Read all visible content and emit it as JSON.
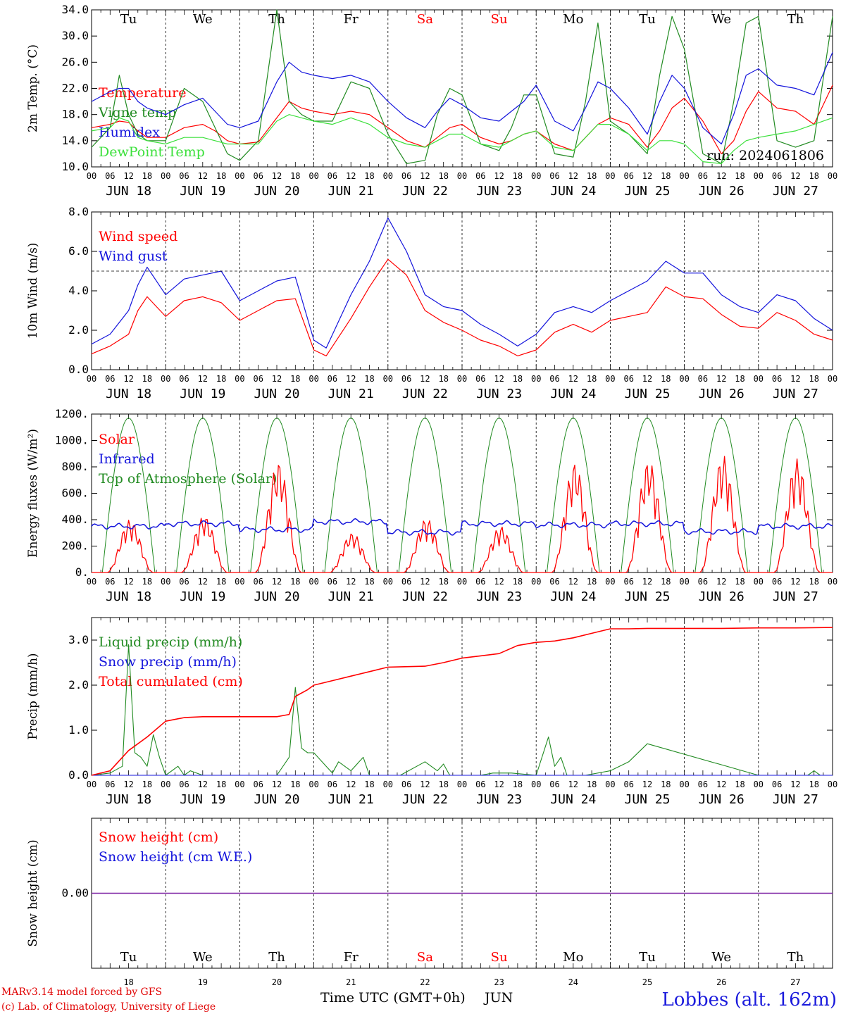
{
  "footer": {
    "model_line": "MARv3.14 model forced by GFS",
    "lab_line": "(c) Lab. of Climatology, University of Liege",
    "x_title": "Time UTC (GMT+0h)",
    "x_month": "JUN",
    "station": "Lobbes (alt. 162m)"
  },
  "days": {
    "weekday_labels": [
      "Tu",
      "We",
      "Th",
      "Fr",
      "Sa",
      "Su",
      "Mo",
      "Tu",
      "We",
      "Th"
    ],
    "weekend_flags": [
      false,
      false,
      false,
      false,
      true,
      true,
      false,
      false,
      false,
      false
    ],
    "date_labels": [
      "JUN 18",
      "JUN 19",
      "JUN 20",
      "JUN 21",
      "JUN 22",
      "JUN 23",
      "JUN 24",
      "JUN 25",
      "JUN 26",
      "JUN 27"
    ],
    "day_numbers": [
      "18",
      "19",
      "20",
      "21",
      "22",
      "23",
      "24",
      "25",
      "26",
      "27"
    ],
    "hour_labels": [
      "00",
      "06",
      "12",
      "18"
    ],
    "final_hour_label": "00"
  },
  "colors": {
    "red": "#ff0000",
    "green": "#228b22",
    "blue": "#1414dc",
    "light_green": "#3ce03c",
    "purple": "#7a1fa2",
    "weekend": "#ff0000"
  },
  "chart_data": [
    {
      "type": "line",
      "ylabel": "2m Temp. (°C)",
      "ylim": [
        10,
        34
      ],
      "yticks": [
        "10.0",
        "14.0",
        "18.0",
        "22.0",
        "26.0",
        "30.0",
        "34.0"
      ],
      "x_hours": [
        0,
        6,
        9,
        12,
        15,
        18,
        24,
        30,
        36,
        40,
        44,
        48,
        54,
        60,
        64,
        68,
        72,
        78,
        84,
        90,
        96,
        102,
        108,
        112,
        116,
        120,
        126,
        132,
        136,
        140,
        144,
        150,
        156,
        160,
        164,
        168,
        174,
        180,
        184,
        188,
        192,
        198,
        204,
        208,
        212,
        216,
        222,
        228,
        234,
        240
      ],
      "annotation": "run: 2024061806",
      "series": [
        {
          "name": "Temperature",
          "color": "#ff0000",
          "values": [
            16.0,
            16.5,
            17.0,
            16.8,
            15.5,
            14.5,
            14.5,
            16.0,
            16.5,
            15.5,
            14.0,
            13.5,
            13.8,
            17.5,
            20.0,
            19.0,
            18.5,
            18.0,
            18.5,
            18.0,
            16.0,
            14.0,
            13.0,
            14.5,
            16.0,
            16.5,
            14.5,
            13.5,
            14.0,
            15.0,
            15.5,
            13.5,
            12.5,
            14.5,
            16.5,
            17.5,
            16.5,
            13.0,
            15.5,
            19.0,
            20.5,
            17.0,
            12.0,
            14.0,
            18.5,
            21.5,
            19.0,
            18.5,
            16.5,
            22.5
          ]
        },
        {
          "name": "Vigne temp",
          "color": "#228b22",
          "values": [
            13.0,
            16.0,
            24.0,
            18.0,
            15.0,
            14.0,
            14.0,
            22.0,
            20.0,
            16.0,
            12.0,
            11.0,
            14.0,
            34.0,
            20.0,
            18.0,
            17.0,
            17.0,
            23.0,
            22.0,
            15.0,
            10.5,
            11.0,
            18.0,
            22.0,
            21.0,
            13.5,
            12.5,
            16.0,
            21.0,
            21.0,
            12.0,
            11.5,
            20.0,
            32.0,
            17.0,
            15.0,
            12.0,
            24.0,
            33.0,
            28.0,
            12.0,
            10.5,
            20.0,
            32.0,
            33.0,
            14.0,
            13.0,
            14.0,
            33.0
          ]
        },
        {
          "name": "Humidex",
          "color": "#1414dc",
          "values": [
            20.0,
            21.5,
            22.0,
            22.0,
            20.0,
            19.0,
            18.0,
            19.5,
            20.5,
            18.5,
            16.5,
            16.0,
            17.0,
            23.0,
            26.0,
            24.5,
            24.0,
            23.5,
            24.0,
            23.0,
            20.0,
            17.5,
            16.0,
            18.5,
            20.5,
            19.5,
            17.5,
            17.0,
            18.5,
            20.0,
            22.5,
            17.0,
            15.5,
            19.0,
            23.0,
            22.0,
            19.0,
            15.0,
            20.0,
            24.0,
            22.0,
            16.0,
            13.5,
            18.0,
            24.0,
            25.0,
            22.5,
            22.0,
            21.0,
            27.5
          ]
        },
        {
          "name": "DewPoint Temp",
          "color": "#3ce03c",
          "values": [
            15.5,
            16.0,
            17.5,
            17.0,
            14.5,
            14.0,
            13.5,
            14.5,
            14.5,
            14.0,
            13.5,
            13.5,
            13.5,
            17.0,
            18.0,
            17.5,
            17.0,
            16.5,
            17.5,
            16.5,
            14.5,
            13.5,
            13.0,
            14.0,
            15.0,
            15.0,
            13.5,
            13.0,
            14.0,
            15.0,
            15.5,
            13.0,
            12.5,
            14.5,
            16.5,
            16.5,
            15.0,
            12.5,
            14.0,
            14.0,
            13.5,
            10.8,
            10.5,
            12.5,
            14.0,
            14.5,
            15.0,
            15.5,
            16.5,
            17.5
          ]
        }
      ]
    },
    {
      "type": "line",
      "ylabel": "10m Wind (m/s)",
      "ylim": [
        0,
        8
      ],
      "yticks": [
        "0.0",
        "2.0",
        "4.0",
        "6.0",
        "8.0"
      ],
      "reference_line": 5.0,
      "x_hours": [
        0,
        6,
        12,
        15,
        18,
        24,
        30,
        36,
        42,
        48,
        54,
        60,
        66,
        72,
        76,
        84,
        90,
        96,
        102,
        108,
        114,
        120,
        126,
        132,
        138,
        144,
        150,
        156,
        162,
        168,
        174,
        180,
        186,
        192,
        198,
        204,
        210,
        216,
        222,
        228,
        234,
        240
      ],
      "series": [
        {
          "name": "Wind speed",
          "color": "#ff0000",
          "values": [
            0.8,
            1.2,
            1.8,
            3.0,
            3.7,
            2.7,
            3.5,
            3.7,
            3.4,
            2.5,
            3.0,
            3.5,
            3.6,
            1.0,
            0.7,
            2.6,
            4.2,
            5.6,
            4.8,
            3.0,
            2.4,
            2.0,
            1.5,
            1.2,
            0.7,
            1.0,
            1.9,
            2.3,
            1.9,
            2.5,
            2.7,
            2.9,
            4.2,
            3.7,
            3.6,
            2.8,
            2.2,
            2.1,
            2.9,
            2.5,
            1.8,
            1.5
          ]
        },
        {
          "name": "Wind gust",
          "color": "#1414dc",
          "values": [
            1.3,
            1.8,
            3.0,
            4.3,
            5.2,
            3.8,
            4.6,
            4.8,
            5.0,
            3.5,
            4.0,
            4.5,
            4.7,
            1.5,
            1.1,
            3.8,
            5.5,
            7.7,
            6.0,
            3.8,
            3.2,
            3.0,
            2.3,
            1.8,
            1.2,
            1.8,
            2.9,
            3.2,
            2.9,
            3.5,
            4.0,
            4.5,
            5.5,
            4.9,
            4.9,
            3.8,
            3.2,
            2.9,
            3.8,
            3.5,
            2.6,
            2.0
          ]
        }
      ]
    },
    {
      "type": "line",
      "ylabel": "Energy fluxes (W/m²)",
      "ylim": [
        0,
        1200
      ],
      "yticks": [
        "0.",
        "200.",
        "400.",
        "600.",
        "800.",
        "1000.",
        "1200."
      ],
      "toa_peak": 1170,
      "solar_peaks": [
        400,
        430,
        840,
        300,
        410,
        350,
        830,
        850,
        890,
        860
      ],
      "infrared_baseline": [
        350,
        370,
        325,
        385,
        305,
        370,
        360,
        370,
        310,
        350
      ],
      "series": [
        {
          "name": "Solar",
          "color": "#ff0000"
        },
        {
          "name": "Infrared",
          "color": "#1414dc"
        },
        {
          "name": "Top of Atmosphere (Solar)",
          "color": "#228b22"
        }
      ]
    },
    {
      "type": "line",
      "ylabel": "Precip (mm/h)",
      "ylim": [
        0,
        3.5
      ],
      "yticks": [
        "0.0",
        "1.0",
        "2.0",
        "3.0"
      ],
      "series": [
        {
          "name": "Liquid precip (mm/h)",
          "color": "#228b22",
          "x_hours": [
            0,
            6,
            10,
            12,
            14,
            16,
            18,
            20,
            22,
            24,
            28,
            30,
            32,
            36,
            40,
            44,
            48,
            60,
            64,
            66,
            68,
            70,
            72,
            76,
            78,
            80,
            84,
            88,
            90,
            96,
            100,
            108,
            112,
            114,
            116,
            120,
            126,
            130,
            136,
            144,
            148,
            150,
            152,
            154,
            160,
            168,
            174,
            180,
            216,
            232,
            234,
            236,
            240
          ],
          "values": [
            0,
            0.05,
            0.2,
            2.9,
            0.5,
            0.4,
            0.2,
            0.9,
            0.4,
            0,
            0.2,
            0,
            0.1,
            0,
            0,
            0,
            0,
            0,
            0.4,
            1.95,
            0.6,
            0.5,
            0.5,
            0.2,
            0.05,
            0.3,
            0.1,
            0.4,
            0,
            0,
            0,
            0.3,
            0.1,
            0.25,
            0,
            0,
            0,
            0.05,
            0.05,
            0,
            0.85,
            0.2,
            0.4,
            0,
            0,
            0.1,
            0.3,
            0.7,
            0,
            0,
            0.1,
            0,
            0
          ]
        },
        {
          "name": "Snow precip (mm/h)",
          "color": "#1414dc",
          "x_hours": [
            0,
            240
          ],
          "values": [
            0,
            0
          ]
        },
        {
          "name": "Total cumulated (cm)",
          "color": "#ff0000",
          "x_hours": [
            0,
            6,
            12,
            18,
            24,
            30,
            36,
            48,
            60,
            64,
            66,
            70,
            72,
            78,
            84,
            90,
            96,
            108,
            114,
            120,
            126,
            132,
            138,
            144,
            150,
            156,
            162,
            168,
            174,
            180,
            192,
            204,
            216,
            228,
            240
          ],
          "values": [
            0,
            0.1,
            0.55,
            0.85,
            1.2,
            1.28,
            1.3,
            1.3,
            1.3,
            1.35,
            1.75,
            1.9,
            2.0,
            2.1,
            2.2,
            2.3,
            2.4,
            2.42,
            2.5,
            2.6,
            2.65,
            2.7,
            2.88,
            2.95,
            2.98,
            3.05,
            3.15,
            3.25,
            3.25,
            3.26,
            3.26,
            3.26,
            3.27,
            3.27,
            3.28
          ]
        }
      ]
    },
    {
      "type": "line",
      "ylabel": "Snow height (cm)",
      "ylim": [
        -1,
        1
      ],
      "yticks": [
        "0.00"
      ],
      "series": [
        {
          "name": "Snow height (cm)",
          "color": "#ff0000",
          "values": [
            0,
            0
          ]
        },
        {
          "name": "Snow height (cm W.E.)",
          "color": "#1414dc",
          "values": [
            0,
            0
          ]
        }
      ]
    }
  ]
}
